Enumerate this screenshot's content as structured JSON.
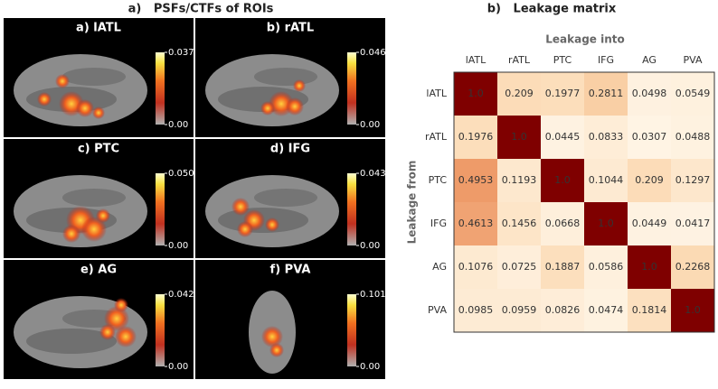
{
  "chart_data": [
    {
      "type": "image-grid",
      "title": "a)   PSFs/CTFs of ROIs",
      "panels": [
        {
          "label": "a) lATL",
          "cbar_ticks": [
            {
              "value": 0,
              "label": "0.00"
            },
            0.037
          ]
        },
        {
          "label": "b) rATL",
          "cbar_ticks": [
            {
              "value": 0,
              "label": "0.00"
            },
            0.046
          ]
        },
        {
          "label": "c) PTC",
          "cbar_ticks": [
            {
              "value": 0,
              "label": "0.00"
            },
            {
              "value": 0.05,
              "label": "0.050"
            }
          ]
        },
        {
          "label": "d) IFG",
          "cbar_ticks": [
            {
              "value": 0,
              "label": "0.00"
            },
            0.043
          ]
        },
        {
          "label": "e) AG",
          "cbar_ticks": [
            {
              "value": 0,
              "label": "0.00"
            },
            0.042
          ]
        },
        {
          "label": "f) PVA",
          "cbar_ticks": [
            {
              "value": 0,
              "label": "0.00"
            },
            0.101
          ]
        }
      ]
    },
    {
      "type": "heatmap",
      "title": "b)   Leakage matrix",
      "x_label": "Leakage into",
      "y_label": "Leakage from",
      "x_categories": [
        "lATL",
        "rATL",
        "PTC",
        "IFG",
        "AG",
        "PVA"
      ],
      "y_categories": [
        "lATL",
        "rATL",
        "PTC",
        "IFG",
        "AG",
        "PVA"
      ],
      "values": [
        [
          1,
          0.209,
          0.1977,
          0.2811,
          0.0498,
          0.0549
        ],
        [
          0.1976,
          1,
          0.0445,
          0.0833,
          0.0307,
          0.0488
        ],
        [
          0.4953,
          0.1193,
          1,
          0.1044,
          0.209,
          0.1297
        ],
        [
          0.4613,
          0.1456,
          0.0668,
          1,
          0.0449,
          0.0417
        ],
        [
          0.1076,
          0.0725,
          0.1887,
          0.0586,
          1,
          0.2268
        ],
        [
          0.0985,
          0.0959,
          0.0826,
          0.0474,
          0.1814,
          1
        ]
      ],
      "value_labels": [
        [
          "1.0",
          "0.209",
          "0.1977",
          "0.2811",
          "0.0498",
          "0.0549"
        ],
        [
          "0.1976",
          "1.0",
          "0.0445",
          "0.0833",
          "0.0307",
          "0.0488"
        ],
        [
          "0.4953",
          "0.1193",
          "1.0",
          "0.1044",
          "0.209",
          "0.1297"
        ],
        [
          "0.4613",
          "0.1456",
          "0.0668",
          "1.0",
          "0.0449",
          "0.0417"
        ],
        [
          "0.1076",
          "0.0725",
          "0.1887",
          "0.0586",
          "1.0",
          "0.2268"
        ],
        [
          "0.0985",
          "0.0959",
          "0.0826",
          "0.0474",
          "0.1814",
          "1.0"
        ]
      ],
      "colormap": [
        "#fff8ec",
        "#fbd7ae",
        "#ee9a68",
        "#c8402c",
        "#7f0000"
      ]
    }
  ]
}
